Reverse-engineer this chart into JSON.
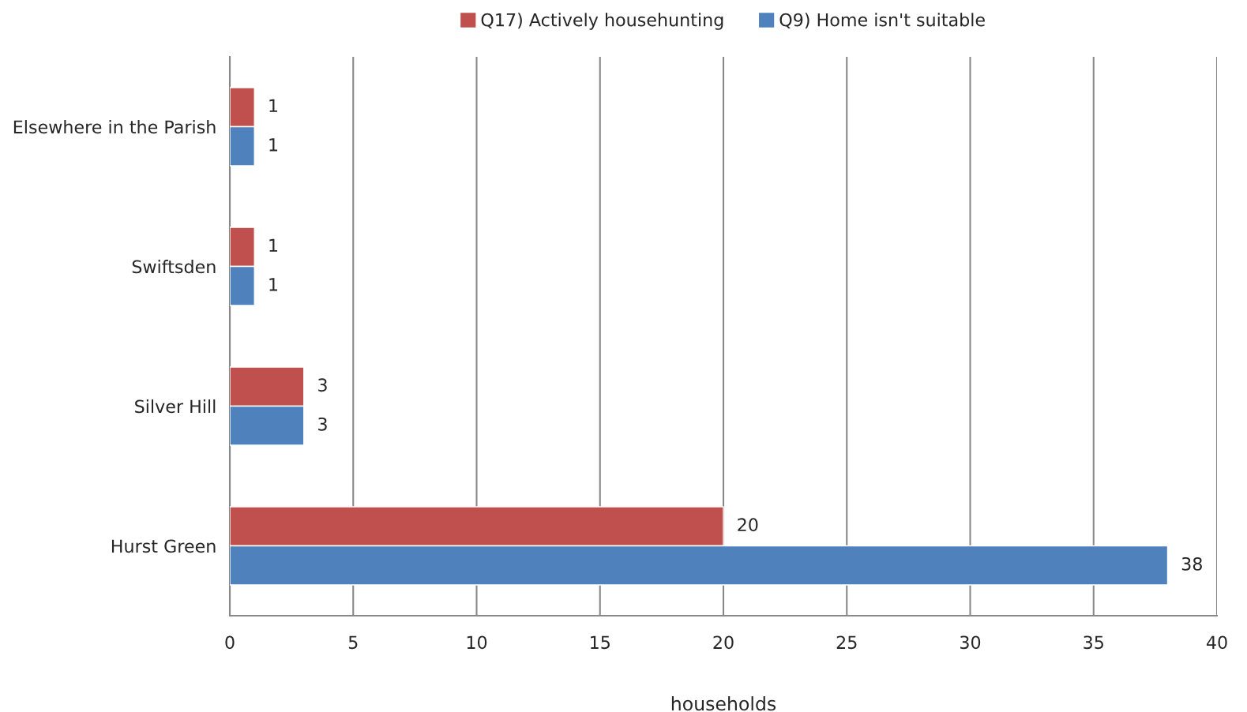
{
  "chart_data": {
    "type": "bar",
    "orientation": "horizontal",
    "xlabel": "households",
    "categories": [
      "Elsewhere in the Parish",
      "Swiftsden",
      "Silver Hill",
      "Hurst Green"
    ],
    "series": [
      {
        "name": "Q17) Actively househunting",
        "color": "#c0504d",
        "values": [
          1,
          1,
          3,
          20
        ]
      },
      {
        "name": "Q9) Home isn't suitable",
        "color": "#4f81bd",
        "values": [
          1,
          1,
          3,
          38
        ]
      }
    ],
    "xlim": [
      0,
      40
    ],
    "xticks": [
      0,
      5,
      10,
      15,
      20,
      25,
      30,
      35,
      40
    ],
    "grid": "x",
    "legend": "top",
    "data_labels": true
  }
}
